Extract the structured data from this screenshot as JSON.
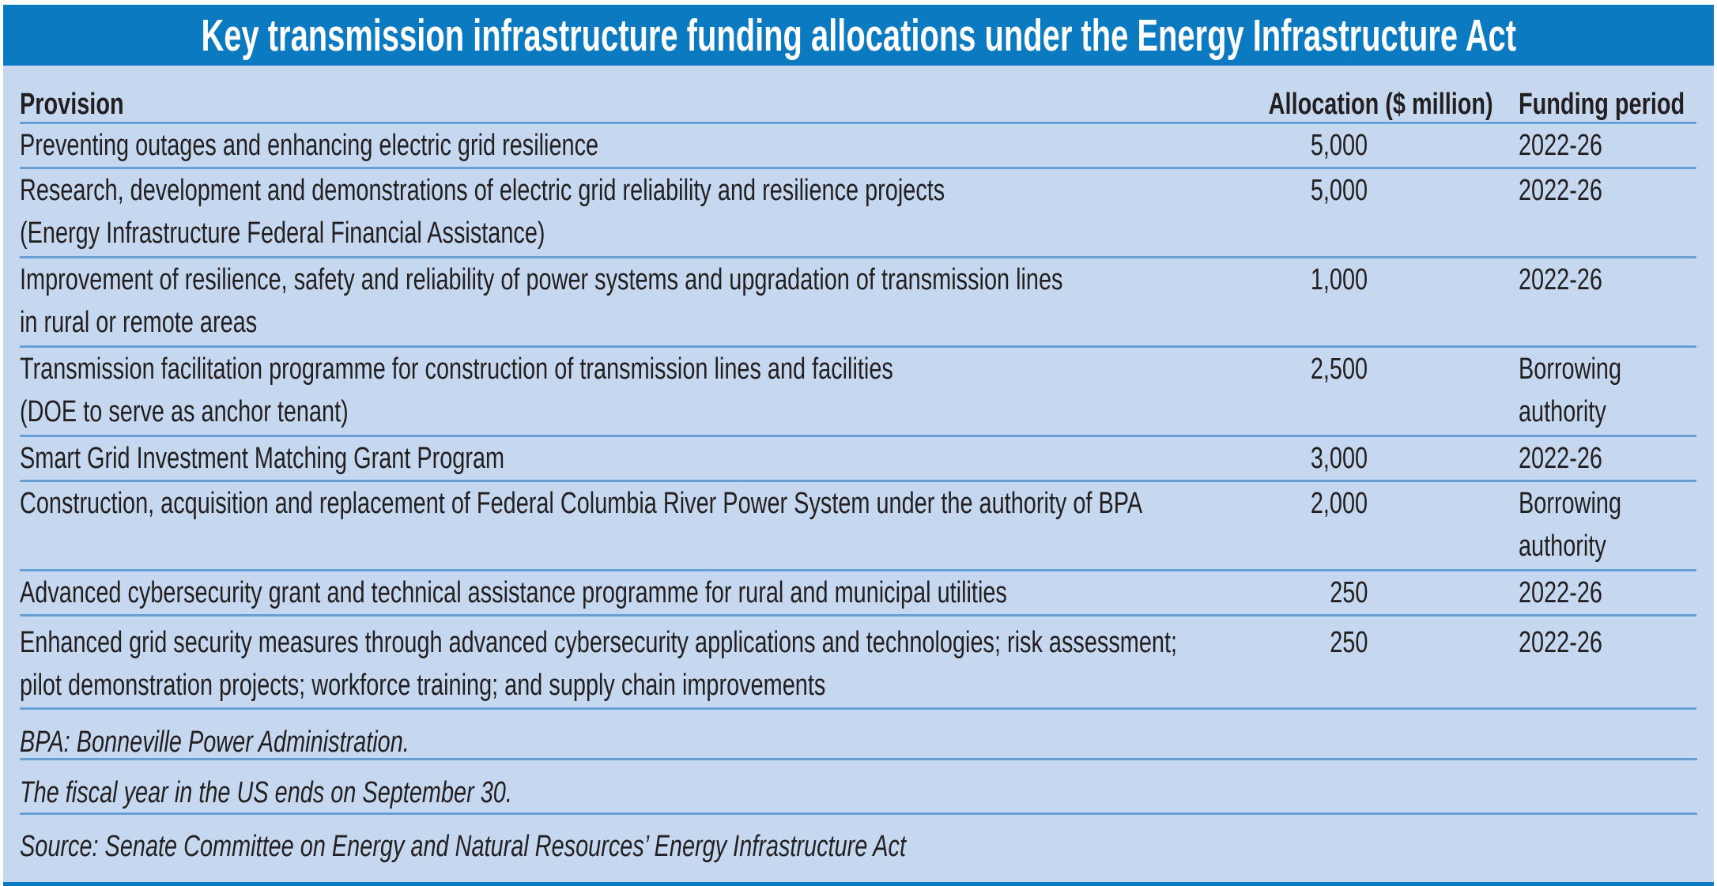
{
  "title": "Key transmission infrastructure funding allocations under the Energy Infrastructure Act",
  "colors": {
    "title_bar_blue": "#0b7ac1",
    "panel_blue": "#c6d8ef",
    "divider_blue": "#66a0d6",
    "text_dark": "#231f20",
    "title_text": "#ffffff"
  },
  "table": {
    "columns": [
      "Provision",
      "Allocation ($ million)",
      "Funding period"
    ],
    "rows": [
      {
        "provision_lines": [
          "Preventing outages and enhancing electric grid resilience"
        ],
        "allocation": "5,000",
        "funding_lines": [
          "2022-26"
        ]
      },
      {
        "provision_lines": [
          "Research, development and demonstrations of electric grid reliability and resilience projects",
          "(Energy Infrastructure Federal Financial Assistance)"
        ],
        "allocation": "5,000",
        "funding_lines": [
          "2022-26"
        ]
      },
      {
        "provision_lines": [
          "Improvement of resilience, safety and reliability of power systems and upgradation of transmission lines",
          "in rural or remote areas"
        ],
        "allocation": "1,000",
        "funding_lines": [
          "2022-26"
        ]
      },
      {
        "provision_lines": [
          "Transmission facilitation programme for construction of transmission lines and facilities",
          "(DOE to serve as anchor tenant)"
        ],
        "allocation": "2,500",
        "funding_lines": [
          "Borrowing",
          "authority"
        ]
      },
      {
        "provision_lines": [
          "Smart Grid Investment Matching Grant Program"
        ],
        "allocation": "3,000",
        "funding_lines": [
          "2022-26"
        ]
      },
      {
        "provision_lines": [
          "Construction, acquisition and replacement of Federal Columbia River Power System under the authority of BPA"
        ],
        "allocation": "2,000",
        "funding_lines": [
          "Borrowing",
          "authority"
        ]
      },
      {
        "provision_lines": [
          "Advanced cybersecurity grant and technical assistance programme for rural and municipal utilities"
        ],
        "allocation": "250",
        "funding_lines": [
          "2022-26"
        ]
      },
      {
        "provision_lines": [
          "Enhanced grid security measures through advanced cybersecurity applications and technologies; risk assessment;",
          "pilot demonstration projects; workforce training; and supply chain improvements"
        ],
        "allocation": "250",
        "funding_lines": [
          "2022-26"
        ]
      }
    ]
  },
  "notes": [
    "BPA: Bonneville Power Administration.",
    "The fiscal year in the US ends on September 30.",
    "Source: Senate Committee on Energy and Natural Resources’ Energy Infrastructure Act"
  ],
  "chart_data": {
    "type": "table",
    "title": "Key transmission infrastructure funding allocations under the Energy Infrastructure Act",
    "columns": [
      "Provision",
      "Allocation ($ million)",
      "Funding period"
    ],
    "rows": [
      [
        "Preventing outages and enhancing electric grid resilience",
        "5,000",
        "2022-26"
      ],
      [
        "Research, development and demonstrations of electric grid reliability and resilience projects (Energy Infrastructure Federal Financial Assistance)",
        "5,000",
        "2022-26"
      ],
      [
        "Improvement of resilience, safety and reliability of power systems and upgradation of transmission lines in rural or remote areas",
        "1,000",
        "2022-26"
      ],
      [
        "Transmission facilitation programme for construction of transmission lines and facilities (DOE to serve as anchor tenant)",
        "2,500",
        "Borrowing authority"
      ],
      [
        "Smart Grid Investment Matching Grant Program",
        "3,000",
        "2022-26"
      ],
      [
        "Construction, acquisition and replacement of Federal Columbia River Power System under the authority of BPA",
        "2,000",
        "Borrowing authority"
      ],
      [
        "Advanced cybersecurity grant and technical assistance programme for rural and municipal utilities",
        "250",
        "2022-26"
      ],
      [
        "Enhanced grid security measures through advanced cybersecurity applications and technologies; risk assessment; pilot demonstration projects; workforce training; and supply chain improvements",
        "250",
        "2022-26"
      ]
    ],
    "allocation_values_million_usd": [
      5000,
      5000,
      1000,
      2500,
      3000,
      2000,
      250,
      250
    ],
    "notes": [
      "BPA: Bonneville Power Administration.",
      "The fiscal year in the US ends on September 30.",
      "Source: Senate Committee on Energy and Natural Resources’ Energy Infrastructure Act"
    ]
  }
}
